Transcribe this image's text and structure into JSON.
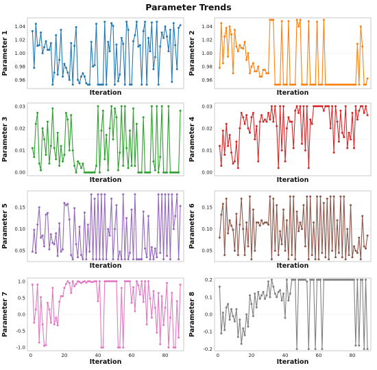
{
  "figure_title": "Parameter Trends",
  "chart_data": [
    {
      "type": "line",
      "name": "p1",
      "ylabel": "Parameter 1",
      "xlabel": "Iteration",
      "xlim": [
        -2,
        91
      ],
      "ylim": [
        0.947,
        1.053
      ],
      "yticks": [
        0.96,
        0.98,
        1.0,
        1.02,
        1.04
      ],
      "ytick_labels": [
        "0.96",
        "0.98",
        "1.00",
        "1.02",
        "1.04"
      ],
      "grid_y": 1.0,
      "color": "#1f77b4",
      "show_x_tick_labels": false,
      "values": [
        1.033,
        0.978,
        1.044,
        1.011,
        1.012,
        1.031,
        1.0,
        1.009,
        1.018,
        1.005,
        1.005,
        1.015,
        0.953,
        0.971,
        1.027,
        0.968,
        0.99,
        1.035,
        0.965,
        0.984,
        0.978,
        0.971,
        0.96,
        1.015,
        0.953,
        1.011,
        1.039,
        0.96,
        0.955,
        0.965,
        0.97,
        0.965,
        0.955,
        0.953,
        0.953,
        1.017,
        0.98,
        0.982,
        1.044,
        0.953,
        0.953,
        0.953,
        0.953,
        1.047,
        0.953,
        1.017,
        1.003,
        1.045,
        1.041,
        0.953,
        1.013,
        0.958,
        0.968,
        1.023,
        1.014,
        0.953,
        1.047,
        1.035,
        0.953,
        0.953,
        1.018,
        1.027,
        1.047,
        1.01,
        1.012,
        0.953,
        1.033,
        1.047,
        0.953,
        1.023,
        1.003,
        1.046,
        0.976,
        0.994,
        1.047,
        0.953,
        1.01,
        1.031,
        1.023,
        1.04,
        1.025,
        1.003,
        1.035,
        0.957,
        1.045,
        1.012,
        0.976,
        1.038,
        1.042
      ]
    },
    {
      "type": "line",
      "name": "p2",
      "ylabel": "Parameter 2",
      "xlabel": "Iteration",
      "xlim": [
        -2,
        91
      ],
      "ylim": [
        0.947,
        1.053
      ],
      "yticks": [
        0.96,
        0.98,
        1.0,
        1.02,
        1.04
      ],
      "ytick_labels": [
        "0.96",
        "0.98",
        "1.00",
        "1.02",
        "1.04"
      ],
      "grid_y": 1.0,
      "color": "#ff7f0e",
      "show_x_tick_labels": false,
      "values": [
        0.978,
        1.045,
        0.985,
        1.025,
        1.038,
        0.995,
        1.04,
        1.028,
        0.97,
        1.035,
        1.01,
        1.003,
        1.012,
        1.008,
        1.007,
        1.017,
        0.99,
        1.0,
        0.97,
        0.98,
        0.985,
        0.973,
        0.973,
        0.98,
        0.965,
        0.965,
        0.975,
        0.975,
        0.97,
        0.97,
        1.05,
        1.05,
        1.05,
        0.953,
        0.953,
        0.953,
        0.953,
        1.048,
        0.953,
        0.953,
        0.953,
        1.048,
        0.953,
        0.953,
        0.953,
        0.953,
        1.05,
        1.04,
        1.05,
        0.953,
        0.953,
        0.953,
        0.953,
        1.048,
        0.953,
        0.953,
        0.953,
        0.953,
        1.047,
        0.953,
        0.953,
        0.953,
        1.05,
        0.953,
        0.953,
        0.953,
        0.953,
        0.953,
        0.953,
        0.953,
        0.953,
        0.953,
        0.953,
        0.953,
        0.953,
        0.953,
        0.953,
        0.953,
        0.953,
        0.953,
        0.953,
        0.953,
        1.014,
        0.953,
        1.04,
        1.01,
        0.953,
        0.953,
        0.962
      ]
    },
    {
      "type": "line",
      "name": "p3",
      "ylabel": "Parameter 3",
      "xlabel": "Iteration",
      "xlim": [
        -2,
        91
      ],
      "ylim": [
        -0.0015,
        0.0315
      ],
      "yticks": [
        0.0,
        0.01,
        0.02,
        0.03
      ],
      "ytick_labels": [
        "0.00",
        "0.01",
        "0.02",
        "0.03"
      ],
      "grid_y": 0.015,
      "color": "#2ca02c",
      "show_x_tick_labels": false,
      "values": [
        0.011,
        0.007,
        0.022,
        0.027,
        0.004,
        0.001,
        0.02,
        0.015,
        0.008,
        0.023,
        0.004,
        0.012,
        0.029,
        0.011,
        0.006,
        0.018,
        0.003,
        0.012,
        0.005,
        0.008,
        0.027,
        0.024,
        0.01,
        0.026,
        0.01,
        0.003,
        0.0,
        0.005,
        0.004,
        0.002,
        0.004,
        0.0,
        0.0,
        0.0,
        0.0,
        0.0,
        0.0,
        0.0,
        0.003,
        0.03,
        0.0,
        0.019,
        0.028,
        0.006,
        0.017,
        0.001,
        0.02,
        0.03,
        0.015,
        0.029,
        0.025,
        0.001,
        0.009,
        0.03,
        0.003,
        0.03,
        0.011,
        0.002,
        0.019,
        0.003,
        0.029,
        0.003,
        0.022,
        0.0,
        0.0,
        0.0,
        0.025,
        0.0,
        0.0,
        0.0,
        0.0,
        0.03,
        0.005,
        0.001,
        0.03,
        0.0,
        0.007,
        0.03,
        0.0,
        0.0,
        0.0,
        0.03,
        0.0,
        0.0,
        0.0,
        0.0,
        0.0,
        0.0,
        0.028
      ]
    },
    {
      "type": "line",
      "name": "p4",
      "ylabel": "Parameter 4",
      "xlabel": "Iteration",
      "xlim": [
        -2,
        91
      ],
      "ylim": [
        -0.0015,
        0.0315
      ],
      "yticks": [
        0.0,
        0.01,
        0.02,
        0.03
      ],
      "ytick_labels": [
        "0.00",
        "0.01",
        "0.02",
        "0.03"
      ],
      "grid_y": 0.015,
      "color": "#d62728",
      "show_x_tick_labels": false,
      "values": [
        0.012,
        0.003,
        0.019,
        0.008,
        0.022,
        0.012,
        0.017,
        0.009,
        0.004,
        0.005,
        0.014,
        0.002,
        0.02,
        0.027,
        0.025,
        0.022,
        0.026,
        0.02,
        0.018,
        0.025,
        0.027,
        0.015,
        0.021,
        0.005,
        0.023,
        0.026,
        0.023,
        0.024,
        0.023,
        0.027,
        0.024,
        0.03,
        0.023,
        0.03,
        0.021,
        0.002,
        0.03,
        0.01,
        0.03,
        0.005,
        0.02,
        0.025,
        0.023,
        0.023,
        0.011,
        0.028,
        0.03,
        0.027,
        0.03,
        0.013,
        0.03,
        0.01,
        0.03,
        0.002,
        0.024,
        0.022,
        0.03,
        0.03,
        0.03,
        0.03,
        0.03,
        0.03,
        0.028,
        0.03,
        0.03,
        0.03,
        0.02,
        0.03,
        0.009,
        0.03,
        0.023,
        0.014,
        0.028,
        0.018,
        0.016,
        0.03,
        0.011,
        0.018,
        0.015,
        0.027,
        0.011,
        0.03,
        0.024,
        0.028,
        0.03,
        0.03,
        0.027,
        0.03,
        0.026
      ]
    },
    {
      "type": "line",
      "name": "p5",
      "ylabel": "Parameter 5",
      "xlabel": "Iteration",
      "xlim": [
        -2,
        91
      ],
      "ylim": [
        0.025,
        0.188
      ],
      "yticks": [
        0.05,
        0.1,
        0.15
      ],
      "ytick_labels": [
        "0.05",
        "0.10",
        "0.15"
      ],
      "grid_y": 0.1,
      "color": "#9467bd",
      "show_x_tick_labels": false,
      "values": [
        0.048,
        0.098,
        0.045,
        0.11,
        0.15,
        0.08,
        0.085,
        0.06,
        0.133,
        0.137,
        0.053,
        0.088,
        0.068,
        0.065,
        0.09,
        0.038,
        0.113,
        0.048,
        0.053,
        0.16,
        0.155,
        0.158,
        0.122,
        0.04,
        0.03,
        0.148,
        0.065,
        0.035,
        0.105,
        0.04,
        0.03,
        0.138,
        0.03,
        0.11,
        0.048,
        0.18,
        0.03,
        0.17,
        0.03,
        0.18,
        0.03,
        0.18,
        0.03,
        0.18,
        0.03,
        0.1,
        0.085,
        0.17,
        0.03,
        0.1,
        0.155,
        0.03,
        0.048,
        0.03,
        0.18,
        0.03,
        0.125,
        0.03,
        0.045,
        0.145,
        0.03,
        0.18,
        0.03,
        0.03,
        0.03,
        0.03,
        0.14,
        0.055,
        0.035,
        0.13,
        0.03,
        0.058,
        0.03,
        0.055,
        0.035,
        0.18,
        0.045,
        0.18,
        0.03,
        0.18,
        0.038,
        0.18,
        0.03,
        0.18,
        0.1,
        0.13,
        0.18,
        0.03,
        0.153
      ]
    },
    {
      "type": "line",
      "name": "p6",
      "ylabel": "Parameter 6",
      "xlabel": "Iteration",
      "xlim": [
        -2,
        91
      ],
      "ylim": [
        0.025,
        0.188
      ],
      "yticks": [
        0.05,
        0.1,
        0.15
      ],
      "ytick_labels": [
        "0.05",
        "0.10",
        "0.15"
      ],
      "grid_y": 0.1,
      "color": "#8c564b",
      "show_x_tick_labels": false,
      "values": [
        0.08,
        0.133,
        0.158,
        0.04,
        0.17,
        0.09,
        0.12,
        0.108,
        0.098,
        0.05,
        0.135,
        0.04,
        0.11,
        0.17,
        0.1,
        0.04,
        0.115,
        0.06,
        0.175,
        0.03,
        0.145,
        0.05,
        0.115,
        0.115,
        0.108,
        0.12,
        0.112,
        0.115,
        0.115,
        0.11,
        0.175,
        0.03,
        0.17,
        0.05,
        0.155,
        0.04,
        0.095,
        0.065,
        0.145,
        0.05,
        0.12,
        0.03,
        0.175,
        0.04,
        0.175,
        0.03,
        0.14,
        0.095,
        0.115,
        0.1,
        0.155,
        0.06,
        0.175,
        0.03,
        0.175,
        0.04,
        0.115,
        0.03,
        0.175,
        0.03,
        0.175,
        0.045,
        0.16,
        0.035,
        0.17,
        0.03,
        0.175,
        0.05,
        0.175,
        0.035,
        0.12,
        0.045,
        0.175,
        0.035,
        0.175,
        0.03,
        0.1,
        0.04,
        0.155,
        0.035,
        0.06,
        0.05,
        0.045,
        0.08,
        0.03,
        0.13,
        0.06,
        0.055,
        0.085
      ]
    },
    {
      "type": "line",
      "name": "p7",
      "ylabel": "Parameter 7",
      "xlabel": "Iteration",
      "xlim": [
        -2,
        91
      ],
      "ylim": [
        -1.1,
        1.1
      ],
      "yticks": [
        -1.0,
        -0.5,
        0.0,
        0.5,
        1.0
      ],
      "ytick_labels": [
        "-1.0",
        "-0.5",
        "0.0",
        "0.5",
        "1.0"
      ],
      "grid_y": 0.0,
      "color": "#e377c2",
      "show_x_tick_labels": true,
      "xticks": [
        0,
        20,
        40,
        60,
        80
      ],
      "xtick_labels": [
        "0",
        "20",
        "40",
        "60",
        "80"
      ],
      "values": [
        0.9,
        -0.25,
        0.15,
        0.9,
        -0.85,
        0.52,
        -0.3,
        -0.95,
        -0.93,
        0.35,
        0.15,
        -0.25,
        0.8,
        -0.3,
        -0.1,
        -0.33,
        0.38,
        0.55,
        0.55,
        0.8,
        0.92,
        1.0,
        0.95,
        0.65,
        1.0,
        0.85,
        0.92,
        1.0,
        0.98,
        0.95,
        0.98,
        1.0,
        0.96,
        1.0,
        1.0,
        0.98,
        0.98,
        1.0,
        1.0,
        0.4,
        1.0,
        -1.0,
        -1.0,
        1.0,
        1.0,
        1.0,
        1.0,
        1.0,
        1.0,
        1.0,
        1.0,
        -1.0,
        -1.0,
        0.8,
        -1.0,
        1.0,
        1.0,
        1.0,
        1.0,
        0.35,
        0.82,
        0.1,
        1.0,
        0.88,
        0.6,
        1.0,
        0.38,
        1.0,
        -0.3,
        1.0,
        0.48,
        -0.1,
        0.7,
        0.2,
        -0.55,
        0.65,
        -0.9,
        0.55,
        -0.32,
        0.2,
        0.95,
        -1.0,
        -0.1,
        0.65,
        -1.0,
        -1.0,
        0.4,
        -0.7,
        0.9
      ]
    },
    {
      "type": "line",
      "name": "p8",
      "ylabel": "Parameter 8",
      "xlabel": "Iteration",
      "xlim": [
        -2,
        91
      ],
      "ylim": [
        -0.21,
        0.21
      ],
      "yticks": [
        -0.2,
        -0.1,
        0.0,
        0.1,
        0.2
      ],
      "ytick_labels": [
        "-0.2",
        "-0.1",
        "0.0",
        "0.1",
        "0.2"
      ],
      "grid_y": 0.0,
      "color": "#7f7f7f",
      "show_x_tick_labels": true,
      "xticks": [
        0,
        20,
        40,
        60,
        80
      ],
      "xtick_labels": [
        "0",
        "20",
        "40",
        "60",
        "80"
      ],
      "values": [
        0.16,
        -0.11,
        0.01,
        -0.09,
        0.04,
        0.06,
        -0.03,
        0.03,
        -0.01,
        -0.04,
        0.03,
        -0.13,
        -0.03,
        -0.17,
        -0.08,
        -0.12,
        0.0,
        -0.07,
        0.11,
        0.06,
        -0.01,
        0.12,
        0.04,
        0.13,
        0.09,
        0.11,
        0.13,
        0.09,
        0.11,
        0.19,
        0.1,
        0.2,
        0.16,
        0.12,
        0.1,
        0.13,
        0.14,
        0.08,
        0.12,
        -0.02,
        0.2,
        0.08,
        0.12,
        0.2,
        0.2,
        0.2,
        -0.2,
        0.2,
        0.2,
        0.2,
        0.2,
        0.2,
        0.19,
        -0.2,
        0.2,
        0.2,
        0.2,
        -0.2,
        0.2,
        0.2,
        0.2,
        -0.2,
        0.2,
        0.2,
        0.2,
        0.2,
        0.2,
        0.2,
        0.2,
        0.2,
        0.2,
        0.2,
        0.2,
        0.2,
        0.2,
        0.2,
        0.2,
        0.2,
        0.2,
        0.2,
        0.2,
        -0.18,
        0.2,
        -0.18,
        0.2,
        0.2,
        -0.2,
        0.2,
        -0.2
      ]
    }
  ]
}
